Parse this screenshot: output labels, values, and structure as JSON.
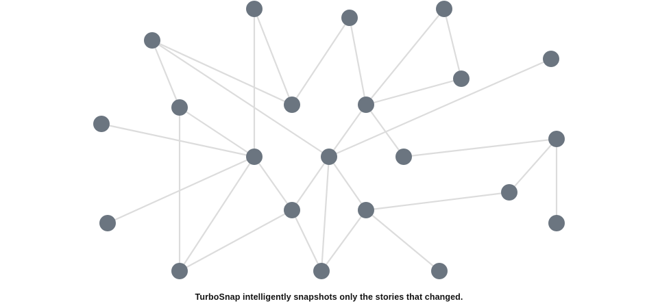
{
  "caption": "TurboSnap intelligently snapshots only the stories that changed.",
  "colors": {
    "node": "#6b7580",
    "edge": "#dcdcdc",
    "text": "#111111"
  },
  "graph": {
    "nodes": [
      {
        "id": "n1"
      },
      {
        "id": "n2"
      },
      {
        "id": "n3"
      },
      {
        "id": "n4"
      },
      {
        "id": "n5"
      },
      {
        "id": "n6"
      },
      {
        "id": "n7"
      },
      {
        "id": "n8"
      },
      {
        "id": "n9"
      },
      {
        "id": "n10"
      },
      {
        "id": "n11"
      },
      {
        "id": "n12"
      },
      {
        "id": "n13"
      },
      {
        "id": "n14"
      },
      {
        "id": "n15"
      },
      {
        "id": "n16"
      },
      {
        "id": "n17"
      },
      {
        "id": "n18"
      },
      {
        "id": "n19"
      },
      {
        "id": "n20"
      },
      {
        "id": "n21"
      },
      {
        "id": "n22"
      },
      {
        "id": "n23"
      }
    ],
    "edges": [
      [
        "n1",
        "n10"
      ],
      [
        "n1",
        "n8"
      ],
      [
        "n2",
        "n8"
      ],
      [
        "n2",
        "n9"
      ],
      [
        "n3",
        "n9"
      ],
      [
        "n3",
        "n6"
      ],
      [
        "n4",
        "n7"
      ],
      [
        "n4",
        "n8"
      ],
      [
        "n4",
        "n12"
      ],
      [
        "n5",
        "n12"
      ],
      [
        "n6",
        "n7"
      ],
      [
        "n6",
        "n14"
      ],
      [
        "n7",
        "n9"
      ],
      [
        "n7",
        "n15"
      ],
      [
        "n10",
        "n13"
      ],
      [
        "n10",
        "n21"
      ],
      [
        "n11",
        "n13"
      ],
      [
        "n12",
        "n14"
      ],
      [
        "n12",
        "n19"
      ],
      [
        "n13",
        "n17"
      ],
      [
        "n13",
        "n20"
      ],
      [
        "n13",
        "n18"
      ],
      [
        "n14",
        "n18"
      ],
      [
        "n14",
        "n22"
      ],
      [
        "n14",
        "n19"
      ],
      [
        "n15",
        "n16"
      ],
      [
        "n16",
        "n23"
      ],
      [
        "n16",
        "n21"
      ],
      [
        "n17",
        "n21"
      ]
    ]
  }
}
